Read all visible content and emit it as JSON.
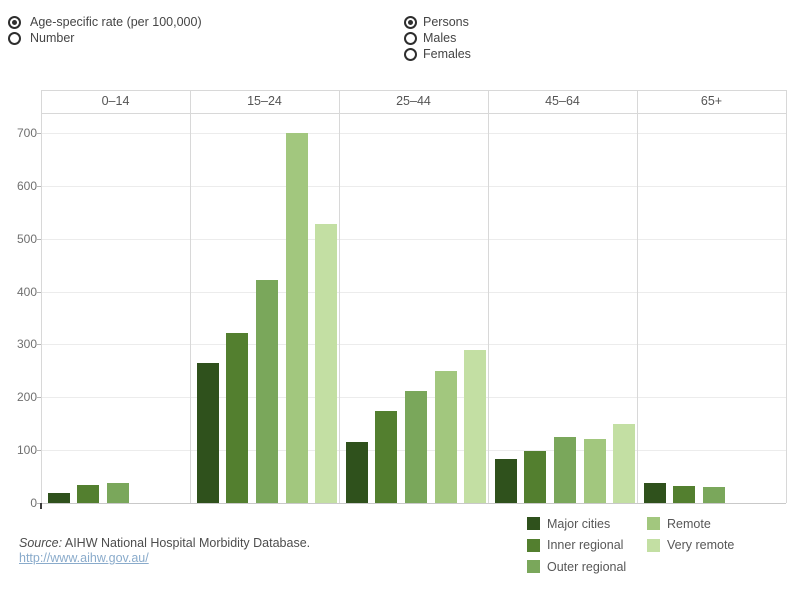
{
  "controls": {
    "measure": {
      "options": [
        {
          "label": "Age-specific rate (per 100,000)",
          "selected": true
        },
        {
          "label": "Number",
          "selected": false
        }
      ]
    },
    "sex": {
      "options": [
        {
          "label": "Persons",
          "selected": true
        },
        {
          "label": "Males",
          "selected": false
        },
        {
          "label": "Females",
          "selected": false
        }
      ]
    }
  },
  "chart_data": {
    "type": "bar",
    "title": "",
    "categories": [
      "0–14",
      "15–24",
      "25–44",
      "45–64",
      "65+"
    ],
    "series": [
      {
        "name": "Major cities",
        "color": "#2f511c",
        "values": [
          19,
          265,
          116,
          83,
          37
        ]
      },
      {
        "name": "Inner regional",
        "color": "#537f2f",
        "values": [
          34,
          322,
          175,
          99,
          33
        ]
      },
      {
        "name": "Outer regional",
        "color": "#7aa75b",
        "values": [
          38,
          421,
          211,
          124,
          30
        ]
      },
      {
        "name": "Remote",
        "color": "#a2c77e",
        "values": [
          null,
          700,
          249,
          121,
          null
        ]
      },
      {
        "name": "Very remote",
        "color": "#c3dfa3",
        "values": [
          null,
          528,
          289,
          150,
          null
        ]
      }
    ],
    "xlabel": "",
    "ylabel": "Age-specific rate (per 100,000)",
    "yticks": [
      0,
      100,
      200,
      300,
      400,
      500,
      600,
      700
    ],
    "ylim": [
      0,
      738
    ],
    "grid": true,
    "legend_position": "bottom-right"
  },
  "source": {
    "prefix": "Source:",
    "text": " AIHW National Hospital Morbidity Database.",
    "link": "http://www.aihw.gov.au/"
  }
}
